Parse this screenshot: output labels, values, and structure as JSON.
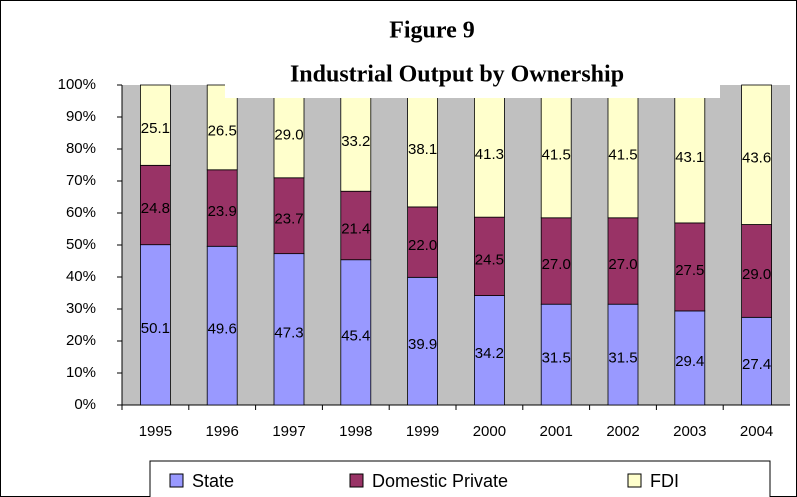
{
  "chart_data": {
    "type": "stacked_bar",
    "title": "Figure 9",
    "subtitle": "Industrial Output by Ownership",
    "categories": [
      "1995",
      "1996",
      "1997",
      "1998",
      "1999",
      "2000",
      "2001",
      "2002",
      "2003",
      "2004"
    ],
    "series": [
      {
        "name": "State",
        "color": "#9999ff",
        "values": [
          50.1,
          49.6,
          47.3,
          45.4,
          39.9,
          34.2,
          31.5,
          31.5,
          29.4,
          27.4
        ],
        "value_labels": [
          "50.1",
          "49.6",
          "47.3",
          "45.4",
          "39.9",
          "34.2",
          "31.5",
          "31.5",
          "29.4",
          "27.4"
        ]
      },
      {
        "name": "Domestic Private",
        "color": "#993366",
        "values": [
          24.8,
          23.9,
          23.7,
          21.4,
          22.0,
          24.5,
          27.0,
          27.0,
          27.5,
          29.0
        ],
        "value_labels": [
          "24.8",
          "23.9",
          "23.7",
          "21.4",
          "22.0",
          "24.5",
          "27.0",
          "27.0",
          "27.5",
          "29.0"
        ]
      },
      {
        "name": "FDI",
        "color": "#ffffcc",
        "values": [
          25.1,
          26.5,
          29.0,
          33.2,
          38.1,
          41.3,
          41.5,
          41.5,
          43.1,
          43.6
        ],
        "value_labels": [
          "25.1",
          "26.5",
          "29.0",
          "33.2",
          "38.1",
          "41.3",
          "41.5",
          "41.5",
          "43.1",
          "43.6"
        ]
      }
    ],
    "ylim": [
      0,
      100
    ],
    "yticks": [
      {
        "value": 0,
        "label": "0%"
      },
      {
        "value": 10,
        "label": "10%"
      },
      {
        "value": 20,
        "label": "20%"
      },
      {
        "value": 30,
        "label": "30%"
      },
      {
        "value": 40,
        "label": "40%"
      },
      {
        "value": 50,
        "label": "50%"
      },
      {
        "value": 60,
        "label": "60%"
      },
      {
        "value": 70,
        "label": "70%"
      },
      {
        "value": 80,
        "label": "80%"
      },
      {
        "value": 90,
        "label": "90%"
      },
      {
        "value": 100,
        "label": "100%"
      }
    ],
    "legend": "bottom"
  }
}
